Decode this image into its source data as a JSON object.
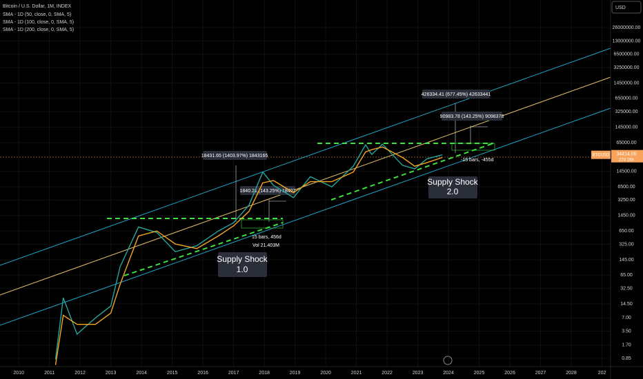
{
  "chart_data": {
    "type": "line",
    "title": "Bitcoin / U.S. Dollar, 1M, INDEX",
    "legend": [
      "SMA - 1D (50, close, 0, SMA, 5)",
      "SMA - 1D (100, close, 0, SMA, 5)",
      "SMA - 1D (200, close, 0, SMA, 5)"
    ],
    "currency": "USD",
    "log_scale": true,
    "xlim": [
      2009.39,
      2029.28
    ],
    "xticks": [
      2010,
      2011,
      2012,
      2013,
      2014,
      2015,
      2016,
      2017,
      2018,
      2019,
      2020,
      2021,
      2022,
      2023,
      2024,
      2025,
      2026,
      2027,
      2028,
      {
        "value": 2029,
        "label": "202"
      }
    ],
    "ylim": [
      0.553,
      110000000
    ],
    "yticks": [
      {
        "value": 26000000,
        "label": "26000000.00"
      },
      {
        "value": 13000000,
        "label": "13000000.00"
      },
      {
        "value": 6500000,
        "label": "6500000.00"
      },
      {
        "value": 3250000,
        "label": "3250000.00"
      },
      {
        "value": 1450000,
        "label": "1450000.00"
      },
      {
        "value": 650000,
        "label": "650000.00"
      },
      {
        "value": 325000,
        "label": "325000.00"
      },
      {
        "value": 145000,
        "label": "145000.00"
      },
      {
        "value": 65000,
        "label": "65000.00"
      },
      {
        "value": 14500,
        "label": "14500.00"
      },
      {
        "value": 6500,
        "label": "6500.00"
      },
      {
        "value": 3250,
        "label": "3250.00"
      },
      {
        "value": 1450,
        "label": "1450.00"
      },
      {
        "value": 650,
        "label": "650.00"
      },
      {
        "value": 325,
        "label": "325.00"
      },
      {
        "value": 145,
        "label": "145.00"
      },
      {
        "value": 65,
        "label": "65.00"
      },
      {
        "value": 32.5,
        "label": "32.50"
      },
      {
        "value": 14.5,
        "label": "14.50"
      },
      {
        "value": 7,
        "label": "7.00"
      },
      {
        "value": 3.5,
        "label": "3.50"
      },
      {
        "value": 1.7,
        "label": "1.70"
      },
      {
        "value": 0.85,
        "label": "0.85"
      }
    ],
    "x": [
      2011.2,
      2011.45,
      2011.9,
      2012.5,
      2013.0,
      2013.3,
      2013.9,
      2014.5,
      2015.1,
      2015.8,
      2016.5,
      2017.0,
      2017.5,
      2017.95,
      2018.3,
      2018.95,
      2019.5,
      2020.2,
      2020.9,
      2021.3,
      2021.5,
      2021.85,
      2022.5,
      2022.9,
      2023.3,
      2023.8
    ],
    "series": [
      {
        "name": "BTCUSD",
        "color": "#26a69a",
        "values": [
          0.8,
          20,
          3,
          7,
          13,
          100,
          800,
          600,
          220,
          300,
          650,
          1000,
          2500,
          14000,
          7000,
          3700,
          11000,
          6500,
          19000,
          58000,
          35000,
          60000,
          20000,
          16500,
          28000,
          34414.05
        ]
      },
      {
        "name": "SMA - 1D (50, close, 0, SMA, 5)",
        "color": "#f5a623",
        "values": [
          0.6,
          8,
          5,
          5,
          9,
          40,
          500,
          650,
          330,
          260,
          500,
          850,
          1800,
          8000,
          9000,
          4800,
          8500,
          8500,
          14000,
          40000,
          45000,
          52000,
          30000,
          19000,
          23000,
          30000
        ]
      }
    ],
    "last_price": {
      "label": "BTCUSD",
      "value": 34414.05,
      "countdown": "27d 16h"
    },
    "annotations": [
      "18431.65 (1403.97%) 1843165",
      "1840.21 (143.25%) 18402",
      "426334.41 (677.45%) 42633441",
      "90983.78 (143.25%) 9098378",
      "15 bars, 456d",
      "Vol 21.403M",
      "-15 bars, -455d"
    ],
    "supply_shocks": [
      [
        "Supply Shock",
        "1.0"
      ],
      [
        "Supply Shock",
        "2.0"
      ]
    ]
  }
}
